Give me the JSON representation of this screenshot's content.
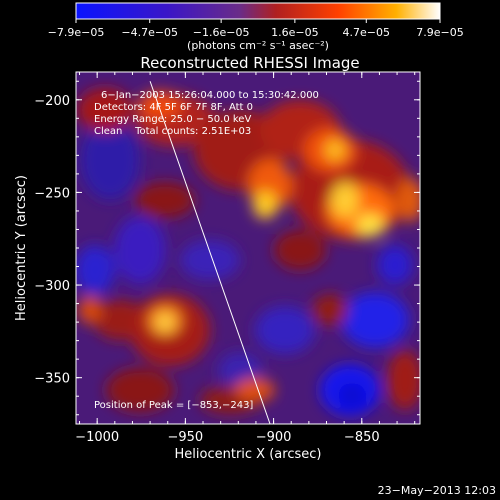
{
  "colorbar": {
    "tick_labels": [
      "−7.9e−05",
      "−4.7e−05",
      "−1.6e−05",
      "1.6e−05",
      "4.7e−05",
      "7.9e−05"
    ],
    "units_label": "(photons cm⁻² s⁻¹ asec⁻²)",
    "range": [
      -7.9e-05,
      7.9e-05
    ],
    "colors": [
      "#0a14ff",
      "#5a1aa8",
      "#6a2c88",
      "#b02020",
      "#ff4000",
      "#ffb000",
      "#ffffff"
    ]
  },
  "chart_data": {
    "type": "heatmap",
    "title": "Reconstructed RHESSI Image",
    "xlabel": "Heliocentric X (arcsec)",
    "ylabel": "Heliocentric Y (arcsec)",
    "xlim": [
      -1012,
      -817
    ],
    "ylim": [
      -375,
      -185
    ],
    "x_ticks": [
      -1000,
      -950,
      -900,
      -850
    ],
    "y_ticks": [
      -200,
      -250,
      -300,
      -350
    ],
    "x_tick_labels": [
      "−1000",
      "−950",
      "−900",
      "−850"
    ],
    "y_tick_labels": [
      "−200",
      "−250",
      "−300",
      "−350"
    ],
    "limb_line": [
      [
        -970,
        -190
      ],
      [
        -902,
        -375
      ]
    ],
    "peak": [
      -853,
      -243
    ],
    "annotations": {
      "time": "6−Jan−2003 15:26:04.000 to 15:30:42.000",
      "detectors": "Detectors: 4F 5F 6F 7F 8F, Att 0",
      "energy": "Energy Range: 25.0 − 50.0 keV",
      "clean": "Clean    Total counts: 2.51E+03",
      "peak_text": "Position of Peak = [−853,−243]"
    }
  },
  "footer": {
    "timestamp": "23−May−2013 12:03"
  }
}
